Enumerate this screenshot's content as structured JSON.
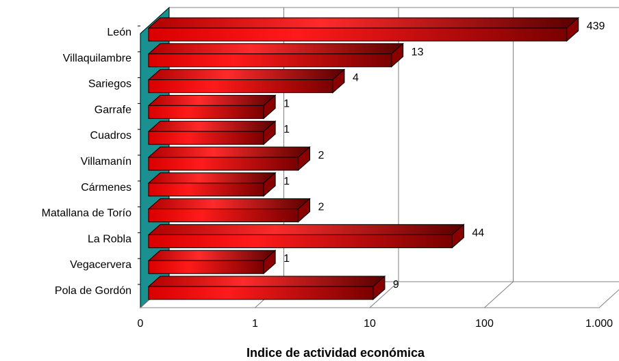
{
  "chart_data": {
    "type": "bar",
    "orientation": "horizontal",
    "style": "3d",
    "x_scale": "log",
    "xlabel": "Indice de actividad económica",
    "xlim": [
      0.1,
      1000
    ],
    "x_ticks": [
      0.1,
      1,
      10,
      100,
      1000
    ],
    "x_tick_labels": [
      "0",
      "1",
      "10",
      "100",
      "1.000"
    ],
    "grid": true,
    "categories": [
      "León",
      "Villaquilambre",
      "Sariegos",
      "Garrafe",
      "Cuadros",
      "Villamanín",
      "Cármenes",
      "Matallana de Torío",
      "La Robla",
      "Vegacervera",
      "Pola de Gordón"
    ],
    "values": [
      439,
      13,
      4,
      1,
      1,
      2,
      1,
      2,
      44,
      1,
      9
    ],
    "data_labels": [
      "439",
      "13",
      "4",
      "1",
      "1",
      "2",
      "1",
      "2",
      "44",
      "1",
      "9"
    ],
    "bar_color": "#ff0000",
    "bar_dark_color": "#6a0000",
    "wall_color": "#1a9090"
  }
}
